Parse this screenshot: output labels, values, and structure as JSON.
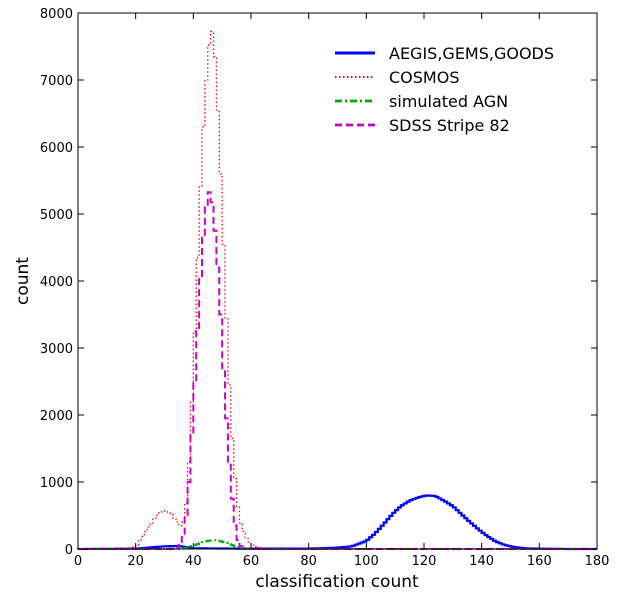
{
  "chart_data": {
    "type": "histogram-step",
    "xlabel": "classification count",
    "ylabel": "count",
    "xlim": [
      0,
      180
    ],
    "ylim": [
      0,
      8000
    ],
    "x_ticks": [
      0,
      20,
      40,
      60,
      80,
      100,
      120,
      140,
      160,
      180
    ],
    "y_ticks": [
      0,
      1000,
      2000,
      3000,
      4000,
      5000,
      6000,
      7000,
      8000
    ],
    "bin_width": 1,
    "grid": false,
    "legend_position": "top-right",
    "series": [
      {
        "name": "AEGIS,GEMS,GOODS",
        "color": "#0000ff",
        "dash": "solid",
        "x": [
          0,
          20,
          30,
          35,
          40,
          60,
          80,
          90,
          95,
          100,
          103,
          106,
          109,
          112,
          115,
          118,
          121,
          124,
          127,
          130,
          133,
          136,
          139,
          142,
          145,
          148,
          151,
          155,
          160,
          165,
          170
        ],
        "values": [
          0,
          5,
          40,
          45,
          10,
          5,
          5,
          20,
          40,
          120,
          230,
          370,
          520,
          640,
          720,
          770,
          800,
          790,
          720,
          640,
          520,
          400,
          290,
          190,
          110,
          60,
          30,
          10,
          5,
          3,
          0
        ]
      },
      {
        "name": "COSMOS",
        "color": "#ff0000",
        "dash": "dotted",
        "x": [
          0,
          15,
          20,
          22,
          24,
          26,
          28,
          30,
          32,
          34,
          36,
          37,
          38,
          39,
          40,
          41,
          42,
          43,
          44,
          45,
          46,
          47,
          48,
          49,
          50,
          51,
          52,
          53,
          54,
          55,
          56,
          58,
          60,
          62,
          65,
          70,
          80,
          100,
          120,
          140,
          180
        ],
        "values": [
          0,
          5,
          30,
          150,
          300,
          420,
          530,
          580,
          540,
          430,
          320,
          480,
          900,
          1700,
          2700,
          3800,
          4900,
          5900,
          6700,
          7300,
          7750,
          7700,
          7000,
          6100,
          5100,
          4000,
          2900,
          2000,
          1300,
          800,
          450,
          200,
          70,
          20,
          5,
          0,
          0,
          5,
          8,
          5,
          0
        ]
      },
      {
        "name": "simulated AGN",
        "color": "#00aa00",
        "dash": "dashdot",
        "x": [
          0,
          30,
          35,
          38,
          40,
          42,
          44,
          46,
          48,
          50,
          52,
          54,
          56,
          60,
          180
        ],
        "values": [
          0,
          0,
          5,
          20,
          50,
          80,
          110,
          130,
          130,
          110,
          80,
          50,
          20,
          0,
          0
        ]
      },
      {
        "name": "SDSS Stripe 82",
        "color": "#cc00cc",
        "dash": "dashed",
        "x": [
          0,
          34,
          35,
          36,
          37,
          38,
          39,
          40,
          41,
          42,
          43,
          44,
          45,
          46,
          47,
          48,
          49,
          50,
          51,
          52,
          53,
          54,
          55,
          56,
          57,
          58,
          60,
          180
        ],
        "values": [
          0,
          0,
          20,
          100,
          300,
          700,
          1300,
          2100,
          2900,
          3700,
          4400,
          4900,
          5300,
          5350,
          5000,
          4500,
          3900,
          3100,
          2300,
          1600,
          1000,
          500,
          200,
          70,
          20,
          5,
          0,
          0
        ]
      }
    ]
  }
}
